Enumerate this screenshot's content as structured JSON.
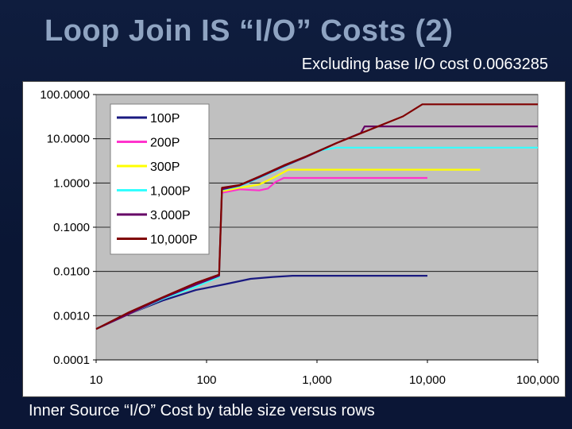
{
  "slide": {
    "title": "Loop Join IS “I/O” Costs (2)",
    "subtitle": "Excluding base I/O cost 0.0063285",
    "caption": "Inner Source “I/O” Cost by table size versus rows"
  },
  "chart_data": {
    "type": "line",
    "title": "",
    "xlabel": "",
    "ylabel": "",
    "x_scale": "log",
    "y_scale": "log",
    "xlim": [
      10,
      100000
    ],
    "ylim": [
      0.0001,
      100
    ],
    "x_ticks": [
      "10",
      "100",
      "1,000",
      "10,000",
      "100,000"
    ],
    "x_tick_values": [
      10,
      100,
      1000,
      10000,
      100000
    ],
    "y_ticks": [
      "100.0000",
      "10.0000",
      "1.0000",
      "0.1000",
      "0.0100",
      "0.0010",
      "0.0001"
    ],
    "y_tick_values": [
      100,
      10,
      1,
      0.1,
      0.01,
      0.001,
      0.0001
    ],
    "grid": "horizontal",
    "legend_position": "top-left",
    "background": "#c0c0c0",
    "series": [
      {
        "name": "100P",
        "color": "#1a1a80",
        "points": [
          [
            10,
            0.0005
          ],
          [
            20,
            0.0011
          ],
          [
            40,
            0.0022
          ],
          [
            80,
            0.0038
          ],
          [
            150,
            0.0052
          ],
          [
            250,
            0.0068
          ],
          [
            400,
            0.0075
          ],
          [
            600,
            0.008
          ],
          [
            1000,
            0.008
          ],
          [
            3000,
            0.008
          ],
          [
            10000,
            0.008
          ]
        ]
      },
      {
        "name": "200P",
        "color": "#ff33cc",
        "points": [
          [
            10,
            0.0005
          ],
          [
            20,
            0.0011
          ],
          [
            40,
            0.0024
          ],
          [
            80,
            0.0045
          ],
          [
            130,
            0.0075
          ],
          [
            138,
            0.6
          ],
          [
            200,
            0.72
          ],
          [
            300,
            0.68
          ],
          [
            360,
            0.75
          ],
          [
            420,
            1.05
          ],
          [
            500,
            1.3
          ],
          [
            1000,
            1.3
          ],
          [
            3000,
            1.3
          ],
          [
            10000,
            1.3
          ]
        ]
      },
      {
        "name": "300P",
        "color": "#ffff00",
        "points": [
          [
            10,
            0.0005
          ],
          [
            20,
            0.0011
          ],
          [
            40,
            0.0024
          ],
          [
            80,
            0.0045
          ],
          [
            130,
            0.0075
          ],
          [
            138,
            0.65
          ],
          [
            200,
            0.78
          ],
          [
            300,
            0.92
          ],
          [
            400,
            1.3
          ],
          [
            550,
            2.0
          ],
          [
            1000,
            2.0
          ],
          [
            5000,
            2.0
          ],
          [
            30000,
            2.0
          ]
        ]
      },
      {
        "name": "1,000P",
        "color": "#33ffff",
        "points": [
          [
            10,
            0.0005
          ],
          [
            20,
            0.0011
          ],
          [
            40,
            0.0024
          ],
          [
            80,
            0.0045
          ],
          [
            130,
            0.0075
          ],
          [
            138,
            0.7
          ],
          [
            200,
            0.85
          ],
          [
            300,
            1.3
          ],
          [
            500,
            2.3
          ],
          [
            800,
            4.0
          ],
          [
            1100,
            5.5
          ],
          [
            1500,
            6.3
          ],
          [
            3000,
            6.3
          ],
          [
            10000,
            6.3
          ],
          [
            100000,
            6.3
          ]
        ]
      },
      {
        "name": "3.000P",
        "color": "#660066",
        "points": [
          [
            10,
            0.0005
          ],
          [
            20,
            0.0011
          ],
          [
            40,
            0.0025
          ],
          [
            80,
            0.005
          ],
          [
            130,
            0.008
          ],
          [
            138,
            0.72
          ],
          [
            200,
            0.88
          ],
          [
            300,
            1.35
          ],
          [
            500,
            2.4
          ],
          [
            800,
            3.9
          ],
          [
            1500,
            8.0
          ],
          [
            2500,
            13.5
          ],
          [
            2700,
            19
          ],
          [
            3000,
            19
          ],
          [
            10000,
            19
          ],
          [
            100000,
            19
          ]
        ]
      },
      {
        "name": "10,000P",
        "color": "#800000",
        "points": [
          [
            10,
            0.0005
          ],
          [
            20,
            0.0012
          ],
          [
            40,
            0.0026
          ],
          [
            80,
            0.0055
          ],
          [
            130,
            0.0085
          ],
          [
            138,
            0.78
          ],
          [
            200,
            0.9
          ],
          [
            300,
            1.4
          ],
          [
            500,
            2.5
          ],
          [
            800,
            4.0
          ],
          [
            1500,
            8.0
          ],
          [
            3000,
            16
          ],
          [
            6000,
            32
          ],
          [
            9000,
            60
          ],
          [
            10000,
            60
          ],
          [
            100000,
            60
          ]
        ]
      }
    ]
  }
}
